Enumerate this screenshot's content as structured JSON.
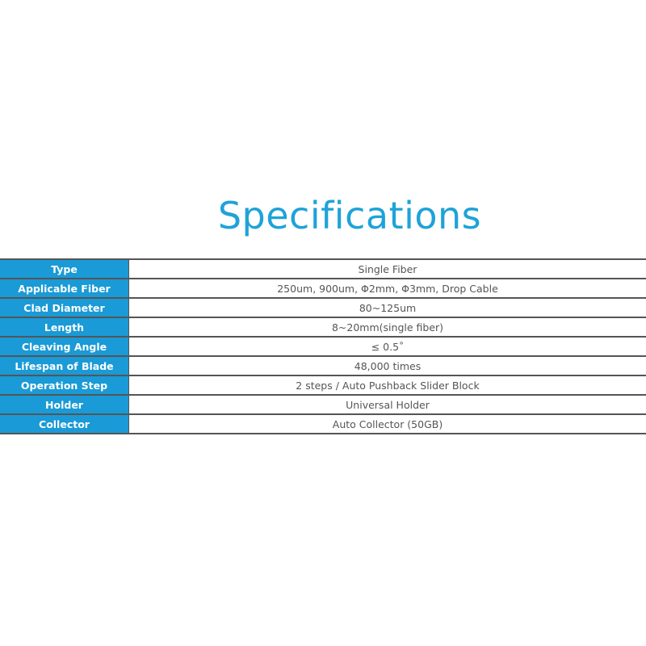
{
  "title": "Specifications",
  "colors": {
    "accent": "#1a9ad6",
    "title": "#1ea3d8"
  },
  "specs": [
    {
      "label": "Type",
      "value": "Single Fiber"
    },
    {
      "label": "Applicable Fiber",
      "value": "250um, 900um, Φ2mm, Φ3mm, Drop Cable"
    },
    {
      "label": "Clad Diameter",
      "value": "80~125um"
    },
    {
      "label": "Length",
      "value": "8~20mm(single fiber)"
    },
    {
      "label": "Cleaving Angle",
      "value": "≤ 0.5˚"
    },
    {
      "label": "Lifespan of Blade",
      "value": "48,000 times"
    },
    {
      "label": "Operation Step",
      "value": "2 steps / Auto Pushback Slider Block"
    },
    {
      "label": "Holder",
      "value": "Universal Holder"
    },
    {
      "label": "Collector",
      "value": "Auto Collector (50GB)"
    }
  ]
}
